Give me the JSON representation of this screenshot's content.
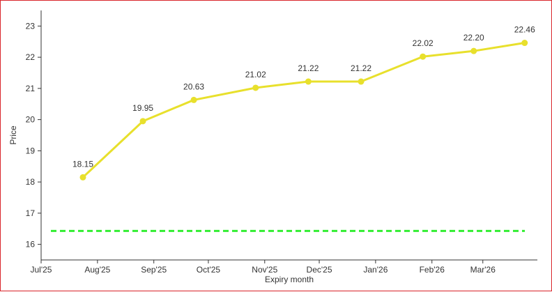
{
  "chart_data": {
    "type": "line",
    "xlabel": "Expiry month",
    "ylabel": "Price",
    "ylim": [
      15.5,
      23.5
    ],
    "xlim": [
      "2025-07-01",
      "2026-03-31"
    ],
    "x_tick_labels": [
      "Jul'25",
      "Aug'25",
      "Sep'25",
      "Oct'25",
      "Nov'25",
      "Dec'25",
      "Jan'26",
      "Feb'26",
      "Mar'26"
    ],
    "y_ticks": [
      16,
      17,
      18,
      19,
      20,
      21,
      22,
      23
    ],
    "series": [
      {
        "color": "#e8e02c",
        "points": [
          {
            "x": "2025-07-24",
            "y": 18.15,
            "label": "18.15"
          },
          {
            "x": "2025-08-26",
            "y": 19.95,
            "label": "19.95"
          },
          {
            "x": "2025-09-23",
            "y": 20.63,
            "label": "20.63"
          },
          {
            "x": "2025-10-27",
            "y": 21.02,
            "label": "21.02"
          },
          {
            "x": "2025-11-25",
            "y": 21.22,
            "label": "21.22"
          },
          {
            "x": "2025-12-24",
            "y": 21.22,
            "label": "21.22"
          },
          {
            "x": "2026-01-27",
            "y": 22.02,
            "label": "22.02"
          },
          {
            "x": "2026-02-24",
            "y": 22.2,
            "label": "22.20"
          },
          {
            "x": "2026-03-24",
            "y": 22.46,
            "label": "22.46"
          }
        ]
      }
    ],
    "reference_line": {
      "y": 16.43,
      "color": "#33ee33",
      "style": "dashed"
    },
    "grid": false,
    "legend": "none"
  }
}
